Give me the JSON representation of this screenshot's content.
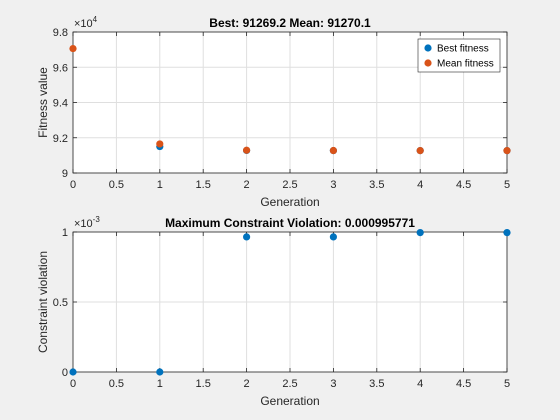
{
  "colors": {
    "best": "#0072bd",
    "mean": "#d95319",
    "figure_bg": "#f0f0f0",
    "axes_bg": "#ffffff",
    "grid": "#dfdfdf",
    "axis": "#262626"
  },
  "chart_data": [
    {
      "type": "scatter",
      "title": "Best: 91269.2 Mean: 91270.1",
      "xlabel": "Generation",
      "ylabel": "Fitness value",
      "exponent_label": "×10",
      "exponent_power": "4",
      "xlim": [
        0,
        5
      ],
      "ylim": [
        90000,
        98000
      ],
      "grid": true,
      "legend_position": "top-right",
      "xticks": [
        0,
        0.5,
        1,
        1.5,
        2,
        2.5,
        3,
        3.5,
        4,
        4.5,
        5
      ],
      "xtick_labels": [
        "0",
        "0.5",
        "1",
        "1.5",
        "2",
        "2.5",
        "3",
        "3.5",
        "4",
        "4.5",
        "5"
      ],
      "yticks": [
        90000,
        92000,
        94000,
        96000,
        98000
      ],
      "ytick_labels": [
        "9",
        "9.2",
        "9.4",
        "9.6",
        "9.8"
      ],
      "series": [
        {
          "name": "Best fitness",
          "color": "#0072bd",
          "x": [
            1,
            2,
            3,
            4,
            5
          ],
          "y": [
            91500,
            91280,
            91270,
            91269.5,
            91269.2
          ]
        },
        {
          "name": "Mean fitness",
          "color": "#d95319",
          "x": [
            0,
            1,
            2,
            3,
            4,
            5
          ],
          "y": [
            97060,
            91650,
            91290,
            91275,
            91271,
            91270.1
          ]
        }
      ]
    },
    {
      "type": "scatter",
      "title": "Maximum Constraint Violation: 0.000995771",
      "xlabel": "Generation",
      "ylabel": "Constraint violation",
      "exponent_label": "×10",
      "exponent_power": "-3",
      "xlim": [
        0,
        5
      ],
      "ylim": [
        0,
        0.001
      ],
      "grid": true,
      "xticks": [
        0,
        0.5,
        1,
        1.5,
        2,
        2.5,
        3,
        3.5,
        4,
        4.5,
        5
      ],
      "xtick_labels": [
        "0",
        "0.5",
        "1",
        "1.5",
        "2",
        "2.5",
        "3",
        "3.5",
        "4",
        "4.5",
        "5"
      ],
      "yticks": [
        0,
        0.0005,
        0.001
      ],
      "ytick_labels": [
        "0",
        "0.5",
        "1"
      ],
      "series": [
        {
          "color": "#0072bd",
          "x": [
            0,
            1,
            2,
            3,
            4,
            5
          ],
          "y": [
            0,
            0,
            0.000965,
            0.000965,
            0.000995771,
            0.000995771
          ]
        }
      ]
    }
  ]
}
